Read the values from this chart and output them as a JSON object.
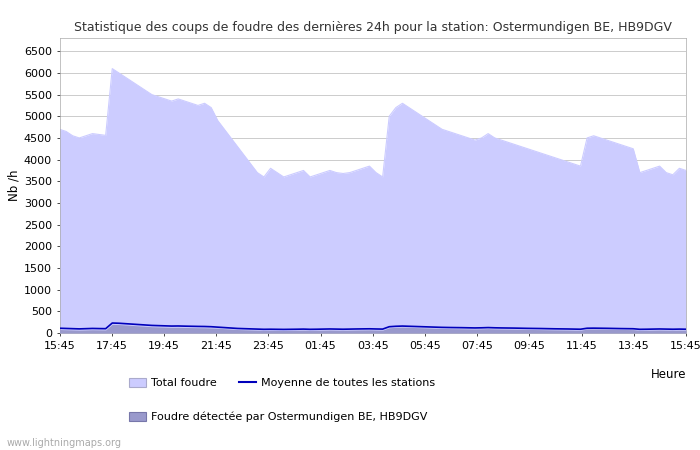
{
  "title": "Statistique des coups de foudre des dernières 24h pour la station: Ostermundigen BE, HB9DGV",
  "ylabel": "Nb /h",
  "xlabel": "Heure",
  "yticks": [
    0,
    500,
    1000,
    1500,
    2000,
    2500,
    3000,
    3500,
    4000,
    4500,
    5000,
    5500,
    6000,
    6500
  ],
  "ylim": [
    0,
    6800
  ],
  "xtick_labels": [
    "15:45",
    "17:45",
    "19:45",
    "21:45",
    "23:45",
    "01:45",
    "03:45",
    "05:45",
    "07:45",
    "09:45",
    "11:45",
    "13:45",
    "15:45"
  ],
  "background_color": "#ffffff",
  "plot_bg_color": "#ffffff",
  "grid_color": "#cccccc",
  "fill_total_color": "#ccccff",
  "fill_station_color": "#9999cc",
  "line_mean_color": "#0000bb",
  "watermark": "www.lightningmaps.org",
  "legend_total": "Total foudre",
  "legend_mean": "Moyenne de toutes les stations",
  "legend_station": "Foudre détectée par Ostermundigen BE, HB9DGV",
  "total_foudre": [
    4700,
    4650,
    4550,
    4500,
    4550,
    4600,
    4580,
    4560,
    6100,
    6000,
    5900,
    5800,
    5700,
    5600,
    5500,
    5450,
    5400,
    5350,
    5400,
    5350,
    5300,
    5250,
    5300,
    5200,
    4900,
    4700,
    4500,
    4300,
    4100,
    3900,
    3700,
    3600,
    3800,
    3700,
    3600,
    3650,
    3700,
    3750,
    3600,
    3650,
    3700,
    3750,
    3700,
    3680,
    3700,
    3750,
    3800,
    3850,
    3700,
    3600,
    5000,
    5200,
    5300,
    5200,
    5100,
    5000,
    4900,
    4800,
    4700,
    4650,
    4600,
    4550,
    4500,
    4450,
    4500,
    4600,
    4500,
    4450,
    4400,
    4350,
    4300,
    4250,
    4200,
    4150,
    4100,
    4050,
    4000,
    3950,
    3900,
    3850,
    4500,
    4550,
    4500,
    4450,
    4400,
    4350,
    4300,
    4250,
    3700,
    3750,
    3800,
    3850,
    3700,
    3650,
    3800,
    3750
  ],
  "station_foudre": [
    80,
    75,
    70,
    65,
    70,
    75,
    72,
    70,
    200,
    195,
    185,
    175,
    165,
    155,
    145,
    140,
    135,
    130,
    132,
    128,
    125,
    122,
    120,
    115,
    110,
    100,
    90,
    80,
    75,
    70,
    65,
    60,
    62,
    60,
    58,
    60,
    62,
    65,
    60,
    62,
    65,
    68,
    65,
    62,
    65,
    68,
    70,
    72,
    68,
    65,
    120,
    130,
    135,
    130,
    125,
    120,
    115,
    110,
    105,
    102,
    100,
    98,
    95,
    92,
    95,
    100,
    95,
    92,
    90,
    88,
    85,
    82,
    80,
    78,
    75,
    72,
    70,
    68,
    65,
    62,
    90,
    92,
    90,
    88,
    85,
    82,
    80,
    78,
    60,
    62,
    65,
    68,
    65,
    62,
    65,
    62
  ],
  "mean_foudre": [
    110,
    105,
    100,
    95,
    100,
    105,
    102,
    100,
    230,
    225,
    215,
    205,
    195,
    185,
    175,
    170,
    165,
    160,
    162,
    158,
    155,
    152,
    150,
    145,
    135,
    125,
    115,
    105,
    100,
    95,
    90,
    85,
    87,
    85,
    83,
    85,
    87,
    90,
    85,
    87,
    90,
    93,
    90,
    87,
    90,
    93,
    95,
    97,
    93,
    90,
    145,
    155,
    160,
    155,
    150,
    145,
    140,
    135,
    130,
    127,
    125,
    123,
    120,
    117,
    120,
    125,
    120,
    117,
    115,
    113,
    110,
    107,
    105,
    103,
    100,
    97,
    95,
    93,
    90,
    87,
    110,
    112,
    110,
    108,
    105,
    102,
    100,
    98,
    85,
    87,
    90,
    93,
    90,
    87,
    90,
    87
  ]
}
